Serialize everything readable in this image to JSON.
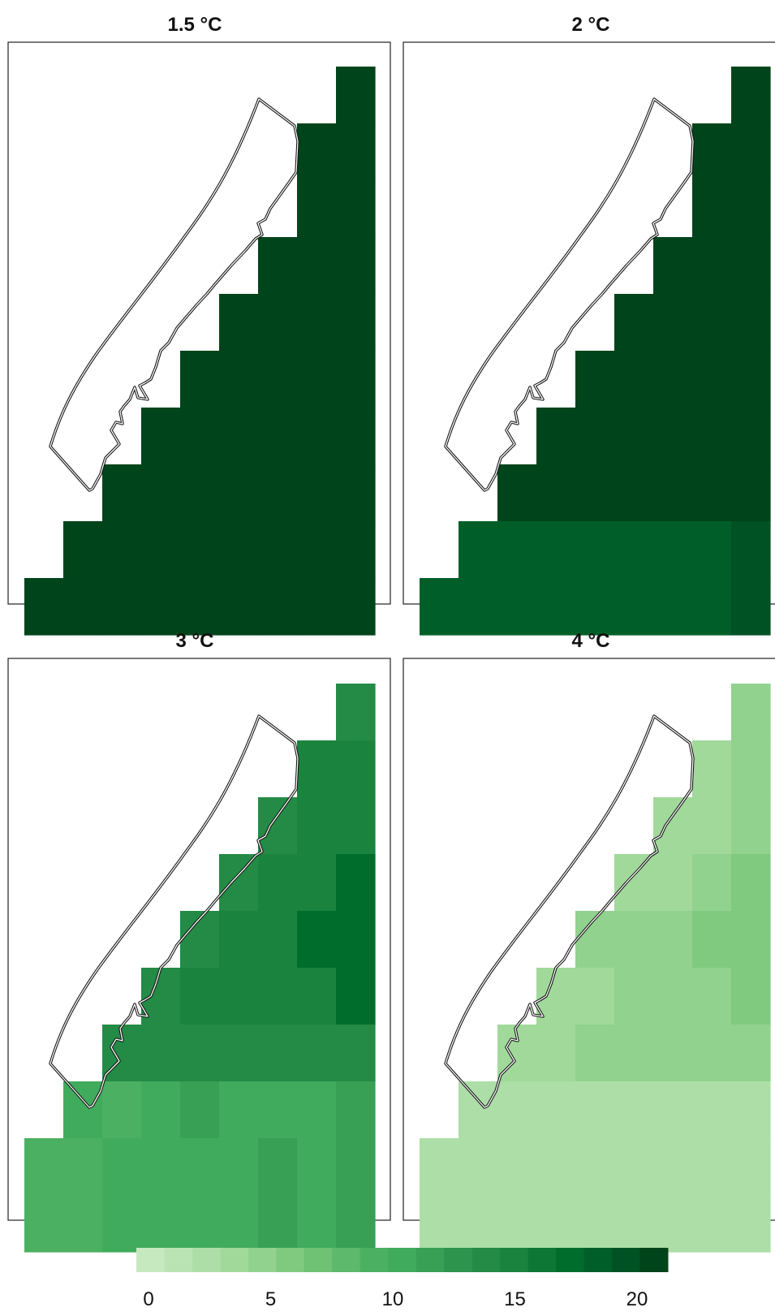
{
  "chart_data": [
    {
      "type": "heatmap",
      "title": "1.5 °C",
      "rows": [
        [
          null,
          null,
          null,
          null,
          null,
          null,
          null,
          null,
          22
        ],
        [
          null,
          null,
          null,
          null,
          null,
          null,
          null,
          22,
          22
        ],
        [
          null,
          null,
          null,
          null,
          null,
          null,
          null,
          22,
          22
        ],
        [
          null,
          null,
          null,
          null,
          null,
          null,
          22,
          22,
          22
        ],
        [
          null,
          null,
          null,
          null,
          null,
          22,
          22,
          22,
          22
        ],
        [
          null,
          null,
          null,
          null,
          22,
          22,
          22,
          22,
          22
        ],
        [
          null,
          null,
          null,
          22,
          22,
          22,
          22,
          22,
          22
        ],
        [
          null,
          null,
          22,
          22,
          22,
          22,
          22,
          22,
          22
        ],
        [
          null,
          22,
          22,
          22,
          22,
          22,
          22,
          22,
          22
        ],
        [
          22,
          22,
          22,
          22,
          22,
          22,
          22,
          22,
          22
        ]
      ]
    },
    {
      "type": "heatmap",
      "title": "2 °C",
      "rows": [
        [
          null,
          null,
          null,
          null,
          null,
          null,
          null,
          null,
          22
        ],
        [
          null,
          null,
          null,
          null,
          null,
          null,
          null,
          22,
          22
        ],
        [
          null,
          null,
          null,
          null,
          null,
          null,
          null,
          22,
          22
        ],
        [
          null,
          null,
          null,
          null,
          null,
          null,
          22,
          22,
          22
        ],
        [
          null,
          null,
          null,
          null,
          null,
          22,
          22,
          22,
          22
        ],
        [
          null,
          null,
          null,
          null,
          22,
          22,
          22,
          22,
          22
        ],
        [
          null,
          null,
          null,
          22,
          22,
          22,
          22,
          22,
          22
        ],
        [
          null,
          null,
          22,
          22,
          22,
          22,
          22,
          22,
          22
        ],
        [
          null,
          19.5,
          19.5,
          19.5,
          19.5,
          19.5,
          19.5,
          19.5,
          21
        ],
        [
          19.5,
          19.5,
          19.5,
          19.5,
          19.5,
          19.5,
          19.5,
          19.5,
          21
        ]
      ]
    },
    {
      "type": "heatmap",
      "title": "3 °C",
      "rows": [
        [
          null,
          null,
          null,
          null,
          null,
          null,
          null,
          null,
          15
        ],
        [
          null,
          null,
          null,
          null,
          null,
          null,
          null,
          16,
          16
        ],
        [
          null,
          null,
          null,
          null,
          null,
          null,
          15,
          16,
          16
        ],
        [
          null,
          null,
          null,
          null,
          null,
          15,
          16,
          16,
          18
        ],
        [
          null,
          null,
          null,
          null,
          15,
          16,
          16,
          18,
          18
        ],
        [
          null,
          null,
          null,
          15,
          16,
          16,
          16,
          16,
          18
        ],
        [
          null,
          null,
          15,
          15,
          15,
          15,
          15,
          15,
          15
        ],
        [
          null,
          11,
          10,
          11,
          12,
          11,
          11,
          11,
          12
        ],
        [
          10,
          10,
          11,
          11,
          11,
          11,
          12,
          11,
          12
        ],
        [
          10,
          10,
          11,
          11,
          11,
          11,
          12,
          11,
          12
        ]
      ]
    },
    {
      "type": "heatmap",
      "title": "4 °C",
      "rows": [
        [
          null,
          null,
          null,
          null,
          null,
          null,
          null,
          null,
          5
        ],
        [
          null,
          null,
          null,
          null,
          null,
          null,
          null,
          4,
          5
        ],
        [
          null,
          null,
          null,
          null,
          null,
          null,
          4,
          4,
          5
        ],
        [
          null,
          null,
          null,
          null,
          null,
          4,
          4,
          5,
          6
        ],
        [
          null,
          null,
          null,
          null,
          5,
          5,
          5,
          6,
          6
        ],
        [
          null,
          null,
          null,
          4,
          4,
          5,
          5,
          5,
          6
        ],
        [
          null,
          null,
          4,
          4,
          5,
          5,
          5,
          5,
          5
        ],
        [
          null,
          3,
          3,
          3,
          3,
          3,
          3,
          3,
          3
        ],
        [
          3,
          3,
          3,
          3,
          3,
          3,
          3,
          3,
          3
        ],
        [
          3,
          3,
          3,
          3,
          3,
          3,
          3,
          3,
          3
        ]
      ]
    }
  ],
  "colorbar": {
    "min": 0,
    "max": 22,
    "ticks": [
      "0",
      "5",
      "10",
      "15",
      "20"
    ],
    "colors": [
      "#c7e9c0",
      "#bae4b3",
      "#addea7",
      "#a1d99b",
      "#91d28e",
      "#80ca80",
      "#6fc173",
      "#5db96b",
      "#4bb062",
      "#41ab5d",
      "#37a055",
      "#2c944c",
      "#238b45",
      "#1a843f",
      "#0d7836",
      "#006d2c",
      "#005f29",
      "#005225",
      "#00441b"
    ]
  }
}
